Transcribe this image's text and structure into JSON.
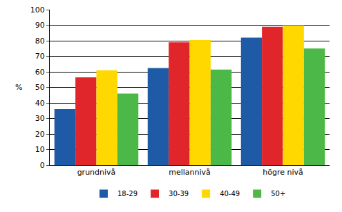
{
  "chart_data": {
    "type": "bar",
    "y_label": "%",
    "categories": [
      "grundnivå",
      "mellannivå",
      "högre nivå"
    ],
    "series": [
      {
        "name": "18-29",
        "color": "#1f5aa6",
        "values": [
          36,
          62.5,
          82
        ]
      },
      {
        "name": "30-39",
        "color": "#e0262b",
        "values": [
          56.5,
          79,
          89
        ]
      },
      {
        "name": "40-49",
        "color": "#ffd800",
        "values": [
          61,
          80.5,
          90
        ]
      },
      {
        "name": "50+",
        "color": "#4cb848",
        "values": [
          46,
          61.5,
          75
        ]
      }
    ],
    "ylim": [
      0,
      100
    ],
    "yticks": [
      0,
      10,
      20,
      30,
      40,
      50,
      60,
      70,
      80,
      90,
      100
    ],
    "grid": true,
    "legend": "bottom"
  }
}
